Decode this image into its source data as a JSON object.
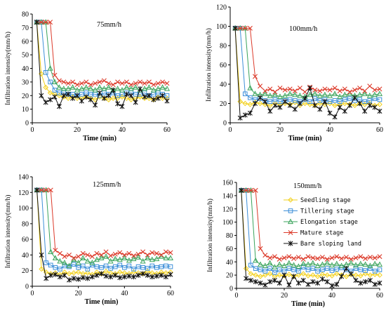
{
  "colors": {
    "seedling": "#f2d01a",
    "tillering": "#3d8fd8",
    "elongation": "#3aa35b",
    "mature": "#dc3a2a",
    "bare": "#111111"
  },
  "legend_series": [
    "Seedling stage",
    "Tillering stage",
    "Elongation stage",
    "Mature stage",
    "Bare sloping land"
  ],
  "chart_data": [
    {
      "type": "line",
      "title": "75mm/h",
      "xlabel": "Time (min)",
      "ylabel": "Infiltration intensity(mm/h)",
      "xlim": [
        0,
        60
      ],
      "ylim": [
        0,
        80
      ],
      "xticks": [
        0,
        20,
        40,
        60
      ],
      "yticks": [
        0,
        10,
        20,
        30,
        40,
        50,
        60,
        70,
        80
      ],
      "x": [
        2,
        4,
        6,
        8,
        10,
        12,
        14,
        16,
        18,
        20,
        22,
        24,
        26,
        28,
        30,
        32,
        34,
        36,
        38,
        40,
        42,
        44,
        46,
        48,
        50,
        52,
        54,
        56,
        58,
        60
      ],
      "series": [
        {
          "name": "Seedling stage",
          "key": "seedling",
          "marker": "diamond",
          "values": [
            74,
            36,
            26,
            22,
            21,
            20,
            19,
            18,
            19,
            18,
            18,
            19,
            18,
            17,
            19,
            18,
            17,
            18,
            18,
            19,
            18,
            17,
            18,
            19,
            18,
            18,
            17,
            19,
            18,
            18
          ]
        },
        {
          "name": "Tillering stage",
          "key": "tillering",
          "marker": "square",
          "values": [
            74,
            74,
            37,
            30,
            24,
            22,
            22,
            21,
            21,
            20,
            21,
            22,
            21,
            21,
            20,
            22,
            21,
            22,
            20,
            21,
            22,
            22,
            21,
            21,
            22,
            20,
            21,
            22,
            21,
            20
          ]
        },
        {
          "name": "Elongation stage",
          "key": "elongation",
          "marker": "triangle",
          "values": [
            74,
            74,
            74,
            40,
            30,
            26,
            25,
            25,
            26,
            24,
            25,
            26,
            25,
            24,
            26,
            25,
            26,
            24,
            25,
            24,
            26,
            25,
            26,
            24,
            25,
            26,
            24,
            25,
            26,
            25
          ]
        },
        {
          "name": "Mature stage",
          "key": "mature",
          "marker": "x",
          "values": [
            74,
            74,
            74,
            74,
            35,
            31,
            30,
            29,
            30,
            28,
            29,
            30,
            28,
            29,
            30,
            31,
            29,
            28,
            30,
            29,
            30,
            28,
            29,
            30,
            29,
            30,
            28,
            29,
            30,
            29
          ]
        },
        {
          "name": "Bare sloping land",
          "key": "bare",
          "marker": "star",
          "values": [
            74,
            20,
            15,
            17,
            19,
            12,
            20,
            21,
            18,
            20,
            16,
            19,
            17,
            13,
            22,
            18,
            20,
            24,
            14,
            12,
            21,
            20,
            15,
            25,
            19,
            20,
            17,
            18,
            20,
            16
          ]
        }
      ]
    },
    {
      "type": "line",
      "title": "100mm/h",
      "xlabel": "Time (min)",
      "ylabel": "Infiltration intensity(mm/h)",
      "xlim": [
        0,
        60
      ],
      "ylim": [
        0,
        120
      ],
      "xticks": [
        0,
        20,
        40,
        60
      ],
      "yticks": [
        0,
        20,
        40,
        60,
        80,
        100,
        120
      ],
      "x": [
        2,
        4,
        6,
        8,
        10,
        12,
        14,
        16,
        18,
        20,
        22,
        24,
        26,
        28,
        30,
        32,
        34,
        36,
        38,
        40,
        42,
        44,
        46,
        48,
        50,
        52,
        54,
        56,
        58,
        60
      ],
      "series": [
        {
          "name": "Seedling stage",
          "key": "seedling",
          "marker": "diamond",
          "values": [
            98,
            22,
            20,
            19,
            21,
            20,
            19,
            18,
            20,
            19,
            20,
            19,
            21,
            18,
            20,
            19,
            18,
            20,
            19,
            20,
            18,
            19,
            20,
            19,
            18,
            20,
            19,
            20,
            18,
            19
          ]
        },
        {
          "name": "Tillering stage",
          "key": "tillering",
          "marker": "square",
          "values": [
            98,
            98,
            30,
            26,
            24,
            25,
            23,
            22,
            24,
            22,
            23,
            24,
            23,
            22,
            24,
            22,
            25,
            23,
            24,
            22,
            23,
            22,
            24,
            25,
            23,
            24,
            22,
            23,
            25,
            24
          ]
        },
        {
          "name": "Elongation stage",
          "key": "elongation",
          "marker": "triangle",
          "values": [
            98,
            98,
            98,
            36,
            30,
            29,
            30,
            28,
            29,
            27,
            28,
            30,
            29,
            28,
            27,
            29,
            30,
            28,
            29,
            28,
            30,
            27,
            29,
            30,
            28,
            29,
            30,
            28,
            29,
            30
          ]
        },
        {
          "name": "Mature stage",
          "key": "mature",
          "marker": "x",
          "values": [
            98,
            98,
            98,
            98,
            48,
            38,
            33,
            35,
            32,
            36,
            34,
            35,
            33,
            36,
            32,
            37,
            34,
            33,
            35,
            34,
            36,
            33,
            35,
            32,
            34,
            36,
            33,
            38,
            34,
            35
          ]
        },
        {
          "name": "Bare sloping land",
          "key": "bare",
          "marker": "star",
          "values": [
            98,
            5,
            8,
            10,
            20,
            26,
            22,
            12,
            18,
            16,
            22,
            18,
            14,
            20,
            25,
            36,
            18,
            14,
            22,
            10,
            6,
            16,
            12,
            18,
            26,
            20,
            12,
            18,
            16,
            12
          ]
        }
      ]
    },
    {
      "type": "line",
      "title": "125mm/h",
      "xlabel": "Time (min)",
      "ylabel": "Infiltration intensity(mm/h)",
      "xlim": [
        0,
        60
      ],
      "ylim": [
        0,
        140
      ],
      "xticks": [
        0,
        20,
        40,
        60
      ],
      "yticks": [
        0,
        20,
        40,
        60,
        80,
        100,
        120,
        140
      ],
      "x": [
        2,
        4,
        6,
        8,
        10,
        12,
        14,
        16,
        18,
        20,
        22,
        24,
        26,
        28,
        30,
        32,
        34,
        36,
        38,
        40,
        42,
        44,
        46,
        48,
        50,
        52,
        54,
        56,
        58,
        60
      ],
      "series": [
        {
          "name": "Seedling stage",
          "key": "seedling",
          "marker": "diamond",
          "values": [
            123,
            22,
            18,
            16,
            17,
            15,
            18,
            16,
            17,
            18,
            16,
            17,
            15,
            18,
            16,
            19,
            17,
            16,
            18,
            17,
            16,
            18,
            17,
            16,
            19,
            17,
            16,
            18,
            17,
            18
          ]
        },
        {
          "name": "Tillering stage",
          "key": "tillering",
          "marker": "square",
          "values": [
            123,
            123,
            30,
            27,
            24,
            22,
            26,
            25,
            28,
            24,
            26,
            22,
            27,
            25,
            24,
            26,
            23,
            25,
            27,
            24,
            26,
            22,
            25,
            24,
            23,
            26,
            24,
            25,
            26,
            25
          ]
        },
        {
          "name": "Elongation stage",
          "key": "elongation",
          "marker": "triangle",
          "values": [
            123,
            123,
            123,
            44,
            36,
            32,
            30,
            26,
            34,
            30,
            36,
            32,
            30,
            34,
            36,
            38,
            32,
            35,
            34,
            36,
            33,
            35,
            37,
            32,
            36,
            34,
            35,
            38,
            36,
            36
          ]
        },
        {
          "name": "Mature stage",
          "key": "mature",
          "marker": "x",
          "values": [
            123,
            123,
            123,
            123,
            46,
            42,
            38,
            40,
            36,
            38,
            42,
            40,
            38,
            42,
            40,
            44,
            39,
            41,
            43,
            40,
            42,
            39,
            41,
            44,
            40,
            43,
            42,
            40,
            44,
            43
          ]
        },
        {
          "name": "Bare sloping land",
          "key": "bare",
          "marker": "star",
          "values": [
            123,
            40,
            10,
            14,
            15,
            12,
            14,
            8,
            10,
            9,
            11,
            10,
            12,
            14,
            16,
            13,
            12,
            14,
            11,
            12,
            13,
            12,
            14,
            16,
            14,
            12,
            13,
            14,
            12,
            15
          ]
        }
      ]
    },
    {
      "type": "line",
      "title": "150mm/h",
      "xlabel": "Time (min)",
      "ylabel": "Infiltration intensity(mm/h)",
      "xlim": [
        0,
        60
      ],
      "ylim": [
        0,
        160
      ],
      "xticks": [
        0,
        20,
        40,
        60
      ],
      "yticks": [
        0,
        20,
        40,
        60,
        80,
        100,
        120,
        140,
        160
      ],
      "x": [
        2,
        4,
        6,
        8,
        10,
        12,
        14,
        16,
        18,
        20,
        22,
        24,
        26,
        28,
        30,
        32,
        34,
        36,
        38,
        40,
        42,
        44,
        46,
        48,
        50,
        52,
        54,
        56,
        58,
        60
      ],
      "series": [
        {
          "name": "Seedling stage",
          "key": "seedling",
          "marker": "diamond",
          "values": [
            148,
            30,
            22,
            20,
            18,
            20,
            22,
            18,
            20,
            19,
            21,
            18,
            20,
            22,
            19,
            20,
            18,
            21,
            20,
            19,
            22,
            20,
            18,
            21,
            20,
            19,
            22,
            20,
            21,
            20
          ]
        },
        {
          "name": "Tillering stage",
          "key": "tillering",
          "marker": "square",
          "values": [
            148,
            148,
            35,
            30,
            28,
            26,
            30,
            24,
            28,
            26,
            30,
            28,
            26,
            32,
            28,
            30,
            26,
            28,
            30,
            27,
            29,
            31,
            28,
            26,
            30,
            28,
            27,
            30,
            26,
            28
          ]
        },
        {
          "name": "Elongation stage",
          "key": "elongation",
          "marker": "triangle",
          "values": [
            148,
            148,
            148,
            42,
            36,
            34,
            38,
            32,
            36,
            34,
            38,
            35,
            33,
            37,
            36,
            38,
            34,
            36,
            38,
            35,
            37,
            34,
            36,
            38,
            35,
            37,
            36,
            34,
            37,
            36
          ]
        },
        {
          "name": "Mature stage",
          "key": "mature",
          "marker": "x",
          "values": [
            148,
            148,
            148,
            148,
            60,
            50,
            46,
            48,
            44,
            46,
            48,
            45,
            47,
            44,
            48,
            46,
            45,
            47,
            44,
            46,
            48,
            45,
            47,
            44,
            46,
            48,
            45,
            47,
            46,
            48
          ]
        },
        {
          "name": "Bare sloping land",
          "key": "bare",
          "marker": "star",
          "values": [
            148,
            15,
            12,
            10,
            8,
            5,
            10,
            12,
            8,
            20,
            5,
            18,
            8,
            12,
            6,
            10,
            8,
            14,
            10,
            4,
            6,
            18,
            30,
            22,
            12,
            8,
            10,
            12,
            6,
            8
          ]
        }
      ]
    }
  ]
}
